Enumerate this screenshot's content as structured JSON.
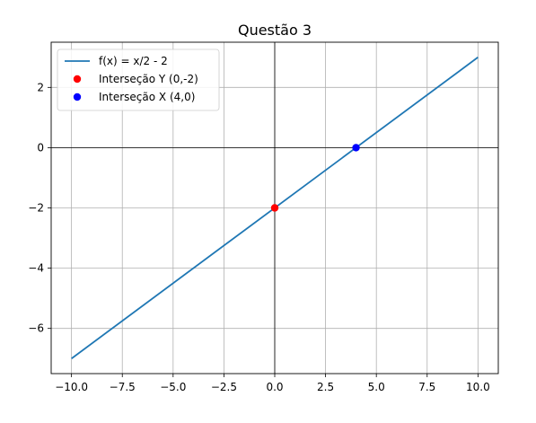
{
  "chart_data": {
    "type": "line",
    "title": "Questão 3",
    "xlabel": "",
    "ylabel": "",
    "xlim": [
      -11,
      11
    ],
    "ylim": [
      -7.5,
      3.5
    ],
    "grid": true,
    "legend_position": "upper-left",
    "x_ticks": [
      -10.0,
      -7.5,
      -5.0,
      -2.5,
      0.0,
      2.5,
      5.0,
      7.5,
      10.0
    ],
    "x_tick_labels": [
      "−10.0",
      "−7.5",
      "−5.0",
      "−2.5",
      "0.0",
      "2.5",
      "5.0",
      "7.5",
      "10.0"
    ],
    "y_ticks": [
      -6,
      -4,
      -2,
      0,
      2
    ],
    "y_tick_labels": [
      "−6",
      "−4",
      "−2",
      "0",
      "2"
    ],
    "reference_lines": {
      "x": 0,
      "y": 0,
      "color": "#000000"
    },
    "series": [
      {
        "name": "f(x) = x/2 - 2",
        "kind": "line",
        "color": "#1f77b4",
        "x": [
          -10,
          10
        ],
        "y": [
          -7,
          3
        ]
      },
      {
        "name": "Interseção Y (0,-2)",
        "kind": "scatter",
        "color": "#ff0000",
        "x": [
          0
        ],
        "y": [
          -2
        ]
      },
      {
        "name": "Interseção X (4,0)",
        "kind": "scatter",
        "color": "#0000ff",
        "x": [
          4
        ],
        "y": [
          0
        ]
      }
    ]
  }
}
